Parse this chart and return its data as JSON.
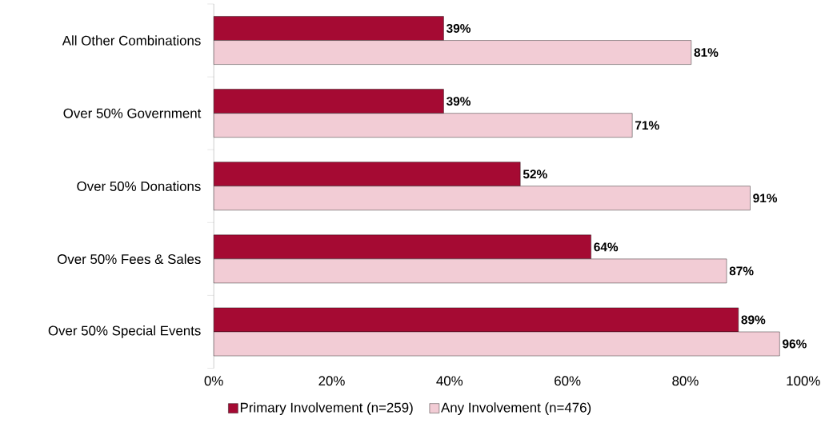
{
  "chart_data": {
    "type": "bar",
    "orientation": "horizontal",
    "categories": [
      "All Other Combinations",
      "Over 50% Government",
      "Over 50% Donations",
      "Over 50% Fees & Sales",
      "Over 50% Special Events"
    ],
    "series": [
      {
        "name": "Primary Involvement (n=259)",
        "color": "#a50a33",
        "values": [
          39,
          39,
          52,
          64,
          89
        ],
        "value_labels": [
          "39%",
          "39%",
          "52%",
          "64%",
          "89%"
        ]
      },
      {
        "name": "Any Involvement (n=476)",
        "color": "#f2ccd5",
        "values": [
          81,
          71,
          91,
          87,
          96
        ],
        "value_labels": [
          "81%",
          "71%",
          "91%",
          "87%",
          "96%"
        ]
      }
    ],
    "xlim": [
      0,
      100
    ],
    "xticks": [
      {
        "value": 0,
        "label": "0%"
      },
      {
        "value": 20,
        "label": "20%"
      },
      {
        "value": 40,
        "label": "40%"
      },
      {
        "value": 60,
        "label": "60%"
      },
      {
        "value": 80,
        "label": "80%"
      },
      {
        "value": 100,
        "label": "100%"
      }
    ],
    "grid": false,
    "legend": "bottom"
  }
}
